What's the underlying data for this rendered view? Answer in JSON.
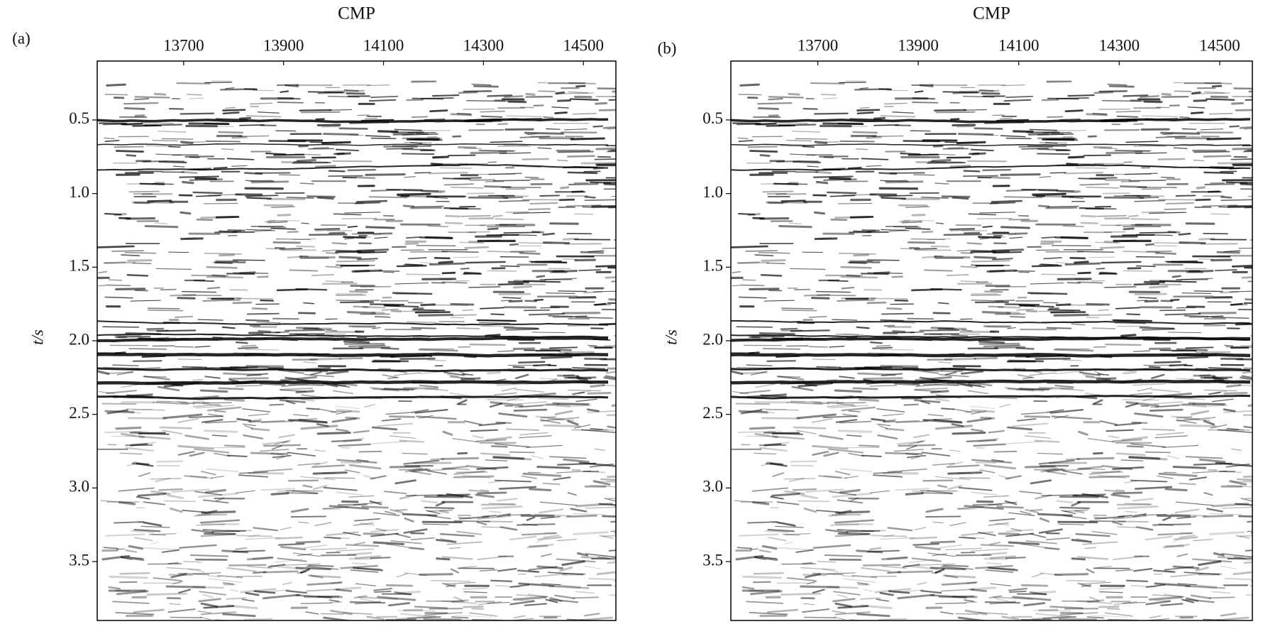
{
  "chart_data": [
    {
      "type": "seismic",
      "panel_label": "(a)",
      "x_label": "CMP",
      "y_label": "t/s",
      "xlim": [
        13527,
        14565
      ],
      "xticks": [
        13700,
        13900,
        14100,
        14300,
        14500
      ],
      "ylim": [
        0.1,
        3.9
      ],
      "yticks": [
        0.5,
        {
          "value": 1,
          "label": "1.0"
        },
        1.5,
        {
          "value": 2,
          "label": "2.0"
        },
        2.5,
        {
          "value": 3,
          "label": "3.0"
        },
        3.5
      ]
    },
    {
      "type": "seismic",
      "panel_label": "(b)",
      "x_label": "CMP",
      "y_label": "t/s",
      "xlim": [
        13527,
        14565
      ],
      "xticks": [
        13700,
        13900,
        14100,
        14300,
        14500
      ],
      "ylim": [
        0.1,
        3.9
      ],
      "yticks": [
        0.5,
        {
          "value": 1,
          "label": "1.0"
        },
        1.5,
        {
          "value": 2,
          "label": "2.0"
        },
        2.5,
        {
          "value": 3,
          "label": "3.0"
        },
        3.5
      ]
    }
  ]
}
